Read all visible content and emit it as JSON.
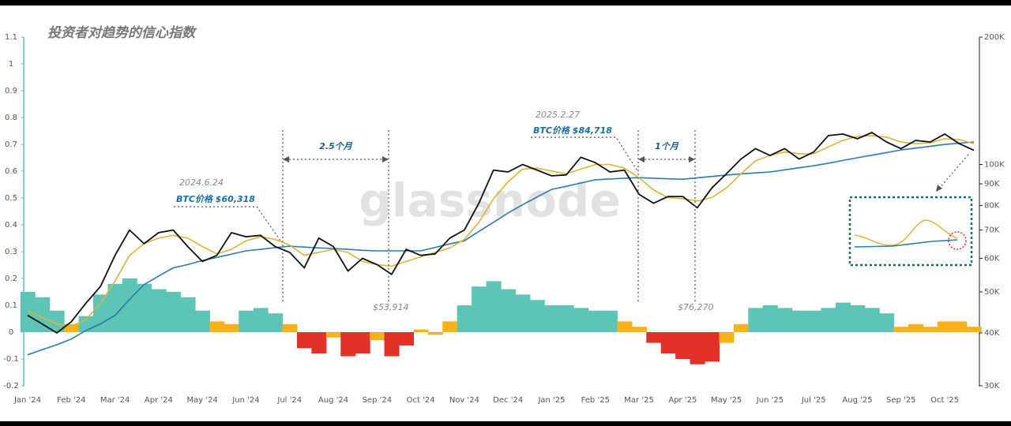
{
  "chart_data": {
    "type": "line",
    "title": "投资者对趋势的信心指数",
    "watermark": "glassnode",
    "categories": [
      "Jan '24",
      null,
      null,
      "Feb '24",
      null,
      null,
      "Mar '24",
      null,
      null,
      "Apr '24",
      null,
      null,
      "May '24",
      null,
      null,
      "Jun '24",
      null,
      null,
      "Jul '24",
      null,
      null,
      "Aug '24",
      null,
      null,
      "Sep '24",
      null,
      null,
      "Oct '24",
      null,
      null,
      "Nov '24",
      null,
      null,
      "Dec '24",
      null,
      null,
      "Jan '25",
      null,
      null,
      "Feb '25",
      null,
      null,
      "Mar '25",
      null,
      null,
      "Apr '25",
      null,
      null,
      "May '25",
      null,
      null,
      "Jun '25",
      null,
      null,
      "Jul '25",
      null,
      null,
      "Aug '25",
      null,
      null,
      "Sep '25",
      null,
      null,
      "Oct '25",
      null,
      null
    ],
    "ylim": [
      -0.2,
      1.1
    ],
    "yticks": [
      -0.2,
      -0.1,
      0,
      0.1,
      0.2,
      0.3,
      0.4,
      0.5,
      0.6,
      0.7,
      0.8,
      0.9,
      1,
      1.1
    ],
    "y2lim": [
      30000,
      200000
    ],
    "y2_log": true,
    "y2ticks": [
      {
        "value": 30000,
        "label": "30K"
      },
      {
        "value": 40000,
        "label": "40K"
      },
      {
        "value": 50000,
        "label": "50K"
      },
      {
        "value": 60000,
        "label": "60K"
      },
      {
        "value": 70000,
        "label": "70K"
      },
      {
        "value": 80000,
        "label": "80K"
      },
      {
        "value": 90000,
        "label": "90K"
      },
      {
        "value": 100000,
        "label": "100K"
      },
      {
        "value": 200000,
        "label": "200K"
      }
    ],
    "series": [
      {
        "type": "bar",
        "values": [
          0.15,
          0.13,
          0.08,
          0.03,
          0.06,
          0.14,
          0.18,
          0.2,
          0.18,
          0.16,
          0.15,
          0.13,
          0.08,
          0.04,
          0.03,
          0.08,
          0.09,
          0.07,
          0.03,
          -0.06,
          -0.08,
          -0.02,
          -0.09,
          -0.08,
          -0.03,
          -0.09,
          -0.05,
          0.01,
          -0.01,
          0.04,
          0.1,
          0.17,
          0.19,
          0.16,
          0.14,
          0.12,
          0.1,
          0.1,
          0.09,
          0.08,
          0.08,
          0.04,
          0.02,
          -0.04,
          -0.08,
          -0.1,
          -0.12,
          -0.11,
          -0.04,
          0.03,
          0.09,
          0.1,
          0.09,
          0.08,
          0.08,
          0.09,
          0.11,
          0.1,
          0.09,
          0.07,
          0.02,
          0.03,
          0.02,
          0.04,
          0.04,
          0.02
        ],
        "colors": [
          "#5ec4b6",
          "#5ec4b6",
          "#5ec4b6",
          "#f6b21a",
          "#5ec4b6",
          "#5ec4b6",
          "#5ec4b6",
          "#5ec4b6",
          "#5ec4b6",
          "#5ec4b6",
          "#5ec4b6",
          "#5ec4b6",
          "#5ec4b6",
          "#f6b21a",
          "#f6b21a",
          "#5ec4b6",
          "#5ec4b6",
          "#5ec4b6",
          "#f6b21a",
          "#e2302a",
          "#e2302a",
          "#f6b21a",
          "#e2302a",
          "#e2302a",
          "#f6b21a",
          "#e2302a",
          "#e2302a",
          "#f6b21a",
          "#f6b21a",
          "#f6b21a",
          "#5ec4b6",
          "#5ec4b6",
          "#5ec4b6",
          "#5ec4b6",
          "#5ec4b6",
          "#5ec4b6",
          "#5ec4b6",
          "#5ec4b6",
          "#5ec4b6",
          "#5ec4b6",
          "#5ec4b6",
          "#f6b21a",
          "#f6b21a",
          "#e2302a",
          "#e2302a",
          "#e2302a",
          "#e2302a",
          "#e2302a",
          "#f6b21a",
          "#f6b21a",
          "#5ec4b6",
          "#5ec4b6",
          "#5ec4b6",
          "#5ec4b6",
          "#5ec4b6",
          "#5ec4b6",
          "#5ec4b6",
          "#5ec4b6",
          "#5ec4b6",
          "#5ec4b6",
          "#f6b21a",
          "#f6b21a",
          "#f6b21a",
          "#f6b21a",
          "#f6b21a",
          "#f6b21a"
        ]
      },
      {
        "type": "line",
        "axis": "y2",
        "color": "#2a7bb0",
        "values": [
          35500,
          36500,
          37500,
          38700,
          40500,
          42000,
          44000,
          48000,
          52000,
          54500,
          57000,
          58000,
          59300,
          60300,
          61400,
          62500,
          63000,
          63600,
          64100,
          63800,
          63500,
          63300,
          63000,
          62700,
          62500,
          62500,
          62500,
          62500,
          63700,
          64900,
          66000,
          69500,
          73000,
          76800,
          80300,
          83800,
          87300,
          88800,
          90400,
          92000,
          92400,
          92800,
          93100,
          92800,
          92500,
          92300,
          93000,
          93700,
          94400,
          95000,
          95500,
          96000,
          97100,
          98200,
          99300,
          100700,
          102200,
          103700,
          105200,
          106700,
          108200,
          109300,
          110400,
          111500,
          112300,
          113000
        ]
      },
      {
        "type": "line",
        "axis": "y2",
        "color": "#d9b53a",
        "values": [
          45000,
          43500,
          42000,
          41500,
          43000,
          47000,
          53000,
          61000,
          65000,
          67000,
          68000,
          67000,
          64000,
          61500,
          63000,
          66000,
          67500,
          66500,
          64500,
          61000,
          62000,
          63000,
          62000,
          59000,
          58000,
          57500,
          59000,
          60500,
          62000,
          63500,
          66500,
          73000,
          83000,
          91000,
          97500,
          98000,
          96500,
          95000,
          97500,
          100000,
          100000,
          98000,
          93000,
          87000,
          83500,
          83000,
          82000,
          83500,
          88000,
          95000,
          102000,
          105000,
          107000,
          106000,
          106000,
          110000,
          114000,
          116500,
          117000,
          116000,
          113000,
          112000,
          112500,
          115000,
          114500,
          112000
        ]
      },
      {
        "type": "line",
        "axis": "y2",
        "color": "#111111",
        "values": [
          44000,
          42000,
          40000,
          42500,
          47000,
          51500,
          61000,
          70000,
          65000,
          69000,
          70000,
          64000,
          59000,
          61000,
          69000,
          67500,
          68000,
          64000,
          62000,
          57000,
          67000,
          64000,
          56000,
          60000,
          58000,
          55000,
          63000,
          61000,
          61500,
          67000,
          70000,
          81000,
          97000,
          96000,
          100000,
          97000,
          94000,
          94500,
          104000,
          101000,
          96000,
          97000,
          85000,
          81000,
          84000,
          84000,
          79000,
          88000,
          95000,
          103000,
          109000,
          105000,
          109000,
          103000,
          107000,
          117000,
          118000,
          115000,
          119000,
          113000,
          109000,
          114000,
          113000,
          118000,
          112000,
          108000
        ]
      }
    ],
    "annotations": [
      "2024.6.24",
      "BTC价格 $60,318",
      "$53,914",
      "2.5个月",
      "2025.2.27",
      "BTC价格 $84,718",
      "1个月",
      "$76,270"
    ]
  }
}
